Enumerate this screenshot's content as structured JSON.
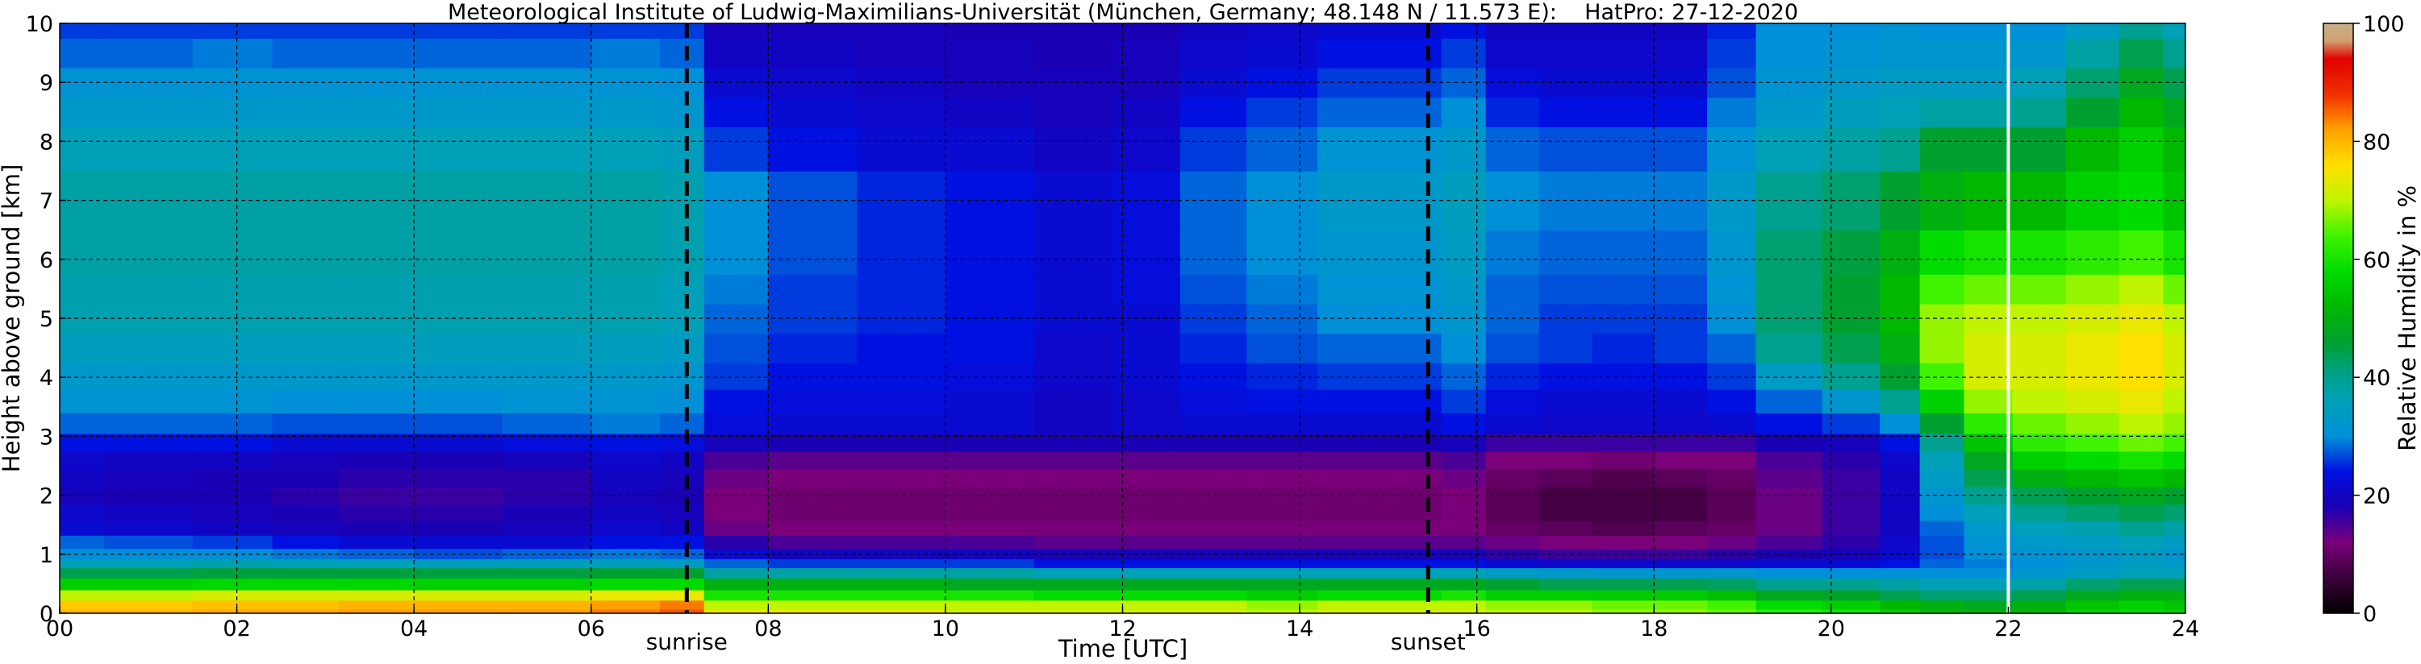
{
  "chart_data": {
    "type": "heatmap",
    "title": "Meteorological Institute of Ludwig-Maximilians-Universität (München, Germany; 48.148 N / 11.573 E):    HatPro: 27-12-2020",
    "xlabel": "Time [UTC]",
    "ylabel": "Height above ground [km]",
    "colorbar_label": "Relative Humidity in %",
    "xlim": [
      0,
      24
    ],
    "ylim": [
      0,
      10
    ],
    "zlim": [
      0,
      100
    ],
    "x_ticks": [
      0,
      2,
      4,
      6,
      8,
      10,
      12,
      14,
      16,
      18,
      20,
      22,
      24
    ],
    "x_tick_labels": [
      "00",
      "02",
      "04",
      "06",
      "08",
      "10",
      "12",
      "14",
      "16",
      "18",
      "20",
      "22",
      "24"
    ],
    "y_ticks": [
      0,
      1,
      2,
      3,
      4,
      5,
      6,
      7,
      8,
      9,
      10
    ],
    "y_tick_labels": [
      "0",
      "1",
      "2",
      "3",
      "4",
      "5",
      "6",
      "7",
      "8",
      "9",
      "10"
    ],
    "colorbar_ticks": [
      0,
      20,
      40,
      60,
      80,
      100
    ],
    "colorbar_tick_labels": [
      "0",
      "20",
      "40",
      "60",
      "80",
      "100"
    ],
    "grid": true,
    "colormap": [
      {
        "v": 0,
        "c": "#000000"
      },
      {
        "v": 6,
        "c": "#3a003a"
      },
      {
        "v": 12,
        "c": "#7a007a"
      },
      {
        "v": 18,
        "c": "#1a00b4"
      },
      {
        "v": 24,
        "c": "#0010e0"
      },
      {
        "v": 30,
        "c": "#0090d8"
      },
      {
        "v": 36,
        "c": "#00a0b8"
      },
      {
        "v": 40,
        "c": "#00a090"
      },
      {
        "v": 46,
        "c": "#00a030"
      },
      {
        "v": 52,
        "c": "#00b800"
      },
      {
        "v": 58,
        "c": "#00dc00"
      },
      {
        "v": 64,
        "c": "#40f400"
      },
      {
        "v": 70,
        "c": "#c0f400"
      },
      {
        "v": 76,
        "c": "#ffe000"
      },
      {
        "v": 82,
        "c": "#ffa000"
      },
      {
        "v": 88,
        "c": "#f03000"
      },
      {
        "v": 94,
        "c": "#e00000"
      },
      {
        "v": 97,
        "c": "#d0a070"
      },
      {
        "v": 100,
        "c": "#c8b08a"
      }
    ],
    "events": [
      {
        "label": "sunrise",
        "time": 7.08
      },
      {
        "label": "sunset",
        "time": 15.45
      }
    ],
    "gap_marker_time": 22.0,
    "column_times": [
      0,
      1,
      2,
      2.8,
      3.5,
      4.5,
      5.5,
      6.5,
      7.05,
      7.5,
      8.5,
      9.5,
      10.5,
      11.5,
      12.3,
      13,
      13.8,
      14.6,
      15.4,
      15.8,
      16.4,
      17,
      17.6,
      18.4,
      18.8,
      19.5,
      20.3,
      20.8,
      21.2,
      21.8,
      22.3,
      23,
      23.5,
      24
    ],
    "row_heights": [
      0,
      0.15,
      0.3,
      0.5,
      0.7,
      0.85,
      1,
      1.2,
      1.45,
      1.7,
      2,
      2.3,
      2.6,
      2.9,
      3.2,
      3.6,
      4,
      4.5,
      5,
      5.5,
      6,
      7,
      8,
      8.5,
      9,
      9.5,
      10
    ],
    "humidity_percent": [
      [
        80,
        78,
        70,
        56,
        44,
        36,
        30,
        28,
        22,
        21,
        19,
        20,
        21,
        24,
        28,
        31,
        33,
        35,
        37,
        37,
        38,
        38,
        36,
        33,
        31,
        28,
        26
      ],
      [
        80,
        78,
        70,
        56,
        44,
        36,
        30,
        27,
        21,
        20,
        18,
        19,
        20,
        24,
        28,
        31,
        33,
        35,
        37,
        37,
        38,
        38,
        36,
        33,
        31,
        28,
        26
      ],
      [
        81,
        79,
        72,
        57,
        45,
        37,
        30,
        26,
        20,
        19,
        18,
        18,
        20,
        24,
        28,
        31,
        33,
        35,
        37,
        37,
        38,
        38,
        36,
        33,
        31,
        29,
        26
      ],
      [
        81,
        79,
        72,
        57,
        45,
        36,
        29,
        24,
        19,
        18,
        17,
        18,
        19,
        22,
        27,
        30,
        33,
        35,
        37,
        37,
        38,
        38,
        36,
        33,
        31,
        28,
        26
      ],
      [
        82,
        80,
        72,
        57,
        45,
        36,
        28,
        22,
        18,
        17,
        16,
        17,
        18,
        22,
        27,
        30,
        33,
        35,
        37,
        37,
        38,
        38,
        36,
        33,
        31,
        28,
        26
      ],
      [
        82,
        80,
        72,
        56,
        45,
        35,
        27,
        22,
        18,
        17,
        16,
        17,
        18,
        22,
        27,
        30,
        33,
        35,
        37,
        37,
        38,
        38,
        36,
        33,
        31,
        28,
        26
      ],
      [
        82,
        80,
        72,
        56,
        45,
        35,
        28,
        22,
        19,
        18,
        17,
        17,
        19,
        23,
        28,
        31,
        33,
        35,
        37,
        37,
        38,
        38,
        36,
        33,
        31,
        28,
        26
      ],
      [
        84,
        82,
        74,
        58,
        46,
        35,
        29,
        24,
        21,
        20,
        19,
        20,
        21,
        24,
        29,
        31,
        33,
        35,
        37,
        37,
        38,
        38,
        36,
        33,
        31,
        29,
        26
      ],
      [
        86,
        84,
        74,
        58,
        46,
        34,
        28,
        24,
        20,
        19,
        18,
        19,
        20,
        23,
        28,
        30,
        32,
        34,
        36,
        36,
        37,
        37,
        35,
        32,
        30,
        28,
        26
      ],
      [
        74,
        70,
        60,
        50,
        38,
        28,
        22,
        17,
        13,
        12,
        12,
        13,
        15,
        19,
        23,
        24,
        26,
        27,
        28,
        29,
        30,
        30,
        26,
        24,
        22,
        20,
        19
      ],
      [
        74,
        70,
        60,
        50,
        38,
        26,
        20,
        15,
        12,
        11,
        11,
        12,
        14,
        18,
        22,
        23,
        24,
        25,
        26,
        26,
        27,
        27,
        24,
        22,
        21,
        20,
        19
      ],
      [
        74,
        70,
        60,
        50,
        38,
        26,
        20,
        15,
        12,
        11,
        11,
        12,
        14,
        18,
        22,
        23,
        24,
        24,
        25,
        25,
        25,
        25,
        22,
        21,
        20,
        19,
        19
      ],
      [
        72,
        70,
        60,
        48,
        38,
        26,
        20,
        15,
        12,
        11,
        11,
        12,
        14,
        18,
        22,
        22,
        23,
        24,
        24,
        24,
        24,
        24,
        22,
        20,
        19,
        19,
        18
      ],
      [
        72,
        70,
        58,
        48,
        36,
        24,
        19,
        14,
        12,
        11,
        11,
        12,
        14,
        18,
        20,
        20,
        21,
        21,
        22,
        22,
        22,
        22,
        20,
        19,
        19,
        18,
        18
      ],
      [
        72,
        70,
        58,
        48,
        36,
        24,
        19,
        14,
        12,
        11,
        11,
        12,
        14,
        18,
        21,
        21,
        22,
        22,
        22,
        23,
        23,
        23,
        21,
        20,
        19,
        19,
        18
      ],
      [
        72,
        70,
        58,
        48,
        36,
        24,
        19,
        14,
        12,
        11,
        11,
        12,
        14,
        18,
        22,
        23,
        24,
        25,
        26,
        27,
        28,
        28,
        26,
        24,
        22,
        21,
        20
      ],
      [
        70,
        68,
        56,
        48,
        36,
        24,
        19,
        14,
        12,
        11,
        11,
        12,
        14,
        18,
        22,
        24,
        25,
        27,
        28,
        29,
        30,
        30,
        28,
        26,
        24,
        22,
        21
      ],
      [
        72,
        70,
        58,
        48,
        36,
        24,
        19,
        14,
        12,
        11,
        11,
        12,
        14,
        18,
        22,
        24,
        26,
        28,
        30,
        31,
        32,
        33,
        31,
        28,
        26,
        24,
        22
      ],
      [
        72,
        70,
        58,
        48,
        36,
        24,
        19,
        14,
        12,
        11,
        11,
        12,
        14,
        18,
        22,
        24,
        26,
        28,
        30,
        31,
        32,
        33,
        31,
        28,
        26,
        24,
        22
      ],
      [
        72,
        70,
        60,
        48,
        36,
        24,
        19,
        14,
        12,
        12,
        12,
        13,
        15,
        19,
        24,
        26,
        28,
        30,
        32,
        33,
        34,
        35,
        33,
        30,
        28,
        26,
        24
      ],
      [
        70,
        68,
        56,
        46,
        34,
        22,
        17,
        13,
        10,
        9,
        9,
        10,
        12,
        16,
        22,
        23,
        25,
        27,
        28,
        28,
        29,
        30,
        28,
        25,
        23,
        21,
        20
      ],
      [
        70,
        68,
        56,
        44,
        33,
        21,
        16,
        12,
        9,
        7,
        7,
        9,
        12,
        16,
        21,
        22,
        24,
        26,
        26,
        27,
        28,
        29,
        27,
        24,
        22,
        21,
        20
      ],
      [
        68,
        66,
        55,
        44,
        32,
        21,
        16,
        12,
        8,
        7,
        7,
        8,
        11,
        16,
        21,
        22,
        24,
        25,
        26,
        27,
        28,
        29,
        27,
        24,
        22,
        21,
        20
      ],
      [
        68,
        66,
        55,
        44,
        32,
        21,
        16,
        12,
        9,
        7,
        7,
        9,
        12,
        16,
        21,
        22,
        24,
        26,
        26,
        27,
        28,
        29,
        27,
        24,
        22,
        21,
        20
      ],
      [
        66,
        64,
        53,
        43,
        32,
        21,
        17,
        13,
        10,
        9,
        9,
        10,
        12,
        16,
        22,
        24,
        26,
        28,
        30,
        31,
        32,
        33,
        31,
        29,
        27,
        26,
        25
      ],
      [
        62,
        58,
        48,
        40,
        30,
        22,
        18,
        15,
        13,
        13,
        13,
        14,
        15,
        18,
        24,
        28,
        34,
        40,
        42,
        42,
        42,
        40,
        36,
        33,
        31,
        30,
        30
      ],
      [
        60,
        56,
        47,
        40,
        30,
        22,
        19,
        17,
        16,
        16,
        16,
        16,
        17,
        19,
        26,
        32,
        40,
        44,
        46,
        46,
        45,
        42,
        38,
        35,
        33,
        31,
        30
      ],
      [
        56,
        52,
        44,
        38,
        30,
        24,
        22,
        21,
        20,
        20,
        20,
        20,
        21,
        24,
        30,
        40,
        46,
        50,
        52,
        52,
        50,
        46,
        40,
        36,
        34,
        32,
        31
      ],
      [
        52,
        50,
        42,
        36,
        30,
        28,
        27,
        27,
        28,
        30,
        32,
        34,
        36,
        40,
        46,
        56,
        64,
        68,
        68,
        64,
        58,
        50,
        46,
        38,
        34,
        32,
        30
      ],
      [
        50,
        48,
        42,
        36,
        30,
        29,
        30,
        31,
        33,
        36,
        40,
        44,
        48,
        54,
        62,
        68,
        72,
        72,
        70,
        66,
        60,
        52,
        46,
        38,
        34,
        32,
        30
      ],
      [
        52,
        50,
        44,
        38,
        32,
        30,
        31,
        33,
        36,
        40,
        44,
        50,
        56,
        62,
        66,
        70,
        72,
        72,
        70,
        66,
        60,
        52,
        46,
        40,
        36,
        32,
        30
      ],
      [
        56,
        54,
        48,
        42,
        34,
        32,
        32,
        34,
        37,
        42,
        46,
        52,
        58,
        64,
        68,
        72,
        74,
        74,
        72,
        68,
        62,
        56,
        52,
        46,
        42,
        38,
        34
      ],
      [
        58,
        56,
        50,
        44,
        36,
        34,
        34,
        36,
        40,
        44,
        48,
        54,
        60,
        66,
        70,
        74,
        76,
        76,
        74,
        70,
        64,
        58,
        56,
        52,
        48,
        44,
        40
      ],
      [
        56,
        54,
        50,
        44,
        36,
        33,
        32,
        34,
        38,
        42,
        46,
        52,
        58,
        64,
        68,
        70,
        72,
        72,
        70,
        66,
        60,
        54,
        52,
        48,
        44,
        40,
        36
      ]
    ]
  }
}
